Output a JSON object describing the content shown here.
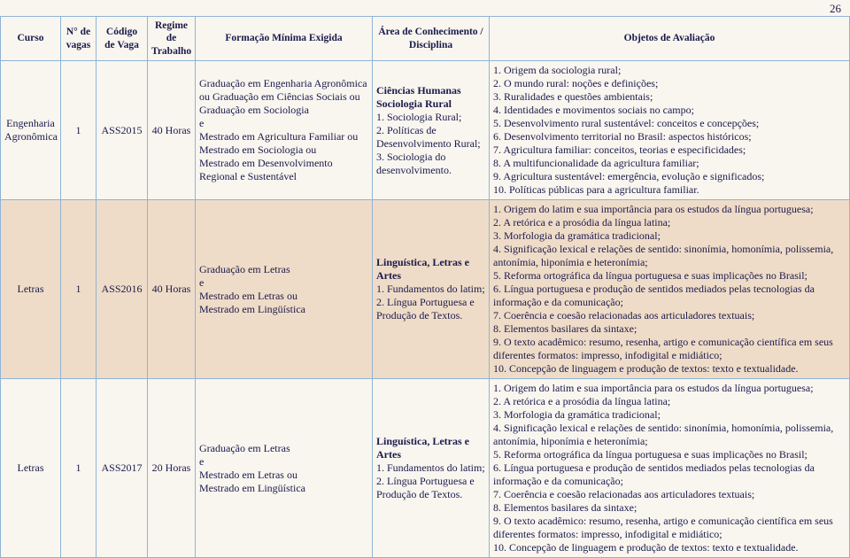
{
  "page_number": "26",
  "headers": {
    "curso": "Curso",
    "vagas": "N° de vagas",
    "codigo": "Código de Vaga",
    "regime": "Regime de Trabalho",
    "formacao": "Formação Mínima Exigida",
    "area": "Área de Conhecimento / Disciplina",
    "objetos": "Objetos de Avaliação"
  },
  "rows": [
    {
      "shaded": false,
      "curso": "Engenharia Agronômica",
      "vagas": "1",
      "codigo": "ASS2015",
      "regime": "40 Horas",
      "formacao": "Graduação em Engenharia Agronômica ou Graduação em Ciências Sociais ou Graduação em Sociologia\ne\nMestrado em Agricultura Familiar ou Mestrado em Sociologia ou\nMestrado em Desenvolvimento Regional e Sustentável",
      "area_bold1": "Ciências Humanas",
      "area_bold2": "Sociologia Rural",
      "area_rest": "1. Sociologia Rural;\n2. Políticas de Desenvolvimento Rural;\n3. Sociologia do desenvolvimento.",
      "objetos": "1. Origem da sociologia rural;\n2. O mundo rural: noções e definições;\n3. Ruralidades e questões ambientais;\n4. Identidades e movimentos sociais no campo;\n5. Desenvolvimento rural sustentável: conceitos e concepções;\n6. Desenvolvimento territorial no Brasil: aspectos históricos;\n7. Agricultura familiar: conceitos, teorias e especificidades;\n8. A multifuncionalidade da agricultura familiar;\n9. Agricultura sustentável: emergência, evolução e significados;\n10. Políticas públicas para a agricultura familiar."
    },
    {
      "shaded": true,
      "curso": "Letras",
      "vagas": "1",
      "codigo": "ASS2016",
      "regime": "40 Horas",
      "formacao": "Graduação em Letras\ne\nMestrado em Letras ou\nMestrado em Lingüística",
      "area_bold1": "Linguística, Letras e Artes",
      "area_bold2": "",
      "area_rest": "1. Fundamentos do latim;\n2. Língua Portuguesa e Produção de Textos.",
      "objetos": "1. Origem do latim e sua importância para os estudos da língua portuguesa;\n2. A retórica e a prosódia da língua latina;\n3. Morfologia da gramática tradicional;\n4. Significação lexical e relações de sentido: sinonímia, homonímia, polissemia, antonímia, hiponímia e heteronímia;\n5. Reforma ortográfica da língua portuguesa e suas implicações no Brasil;\n6. Língua portuguesa e produção de sentidos mediados pelas tecnologias da informação e da comunicação;\n7. Coerência e coesão relacionadas aos articuladores textuais;\n8. Elementos basilares da sintaxe;\n9. O texto acadêmico: resumo, resenha, artigo e comunicação científica em seus diferentes formatos: impresso, infodigital e midiático;\n10. Concepção de linguagem e produção de textos: texto e textualidade."
    },
    {
      "shaded": false,
      "curso": "Letras",
      "vagas": "1",
      "codigo": "ASS2017",
      "regime": "20 Horas",
      "formacao": "Graduação em Letras\ne\nMestrado em Letras ou\nMestrado em Lingüística",
      "area_bold1": "Linguística, Letras e Artes",
      "area_bold2": "",
      "area_rest": "1. Fundamentos do latim;\n2. Língua Portuguesa e Produção de Textos.",
      "objetos": "1. Origem do latim e sua importância para os estudos da língua portuguesa;\n2. A retórica e a prosódia da língua latina;\n3. Morfologia da gramática tradicional;\n4. Significação lexical e relações de sentido: sinonímia, homonímia, polissemia, antonímia, hiponímia e heteronímia;\n5. Reforma ortográfica da língua portuguesa e suas implicações no Brasil;\n6. Língua portuguesa e produção de sentidos mediados pelas tecnologias da informação e da comunicação;\n7. Coerência e coesão relacionadas aos articuladores textuais;\n8. Elementos basilares da sintaxe;\n9. O texto acadêmico: resumo, resenha, artigo e comunicação científica em seus diferentes formatos: impresso, infodigital e midiático;\n10. Concepção de linguagem e produção de textos: texto e textualidade."
    }
  ]
}
